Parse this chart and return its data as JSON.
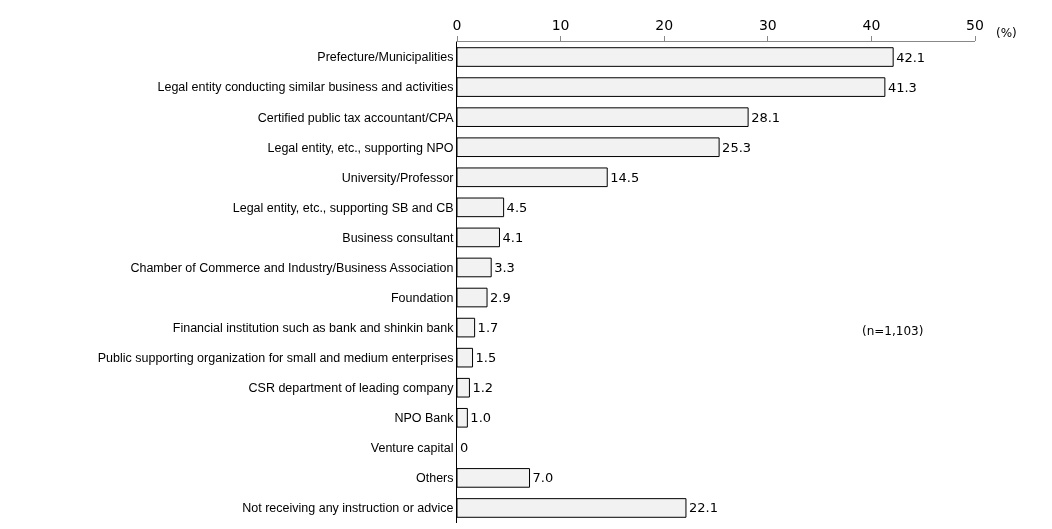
{
  "chart_data": {
    "type": "bar",
    "orientation": "horizontal",
    "categories": [
      "Prefecture/Municipalities",
      "Legal entity conducting similar business and activities",
      "Certified public tax accountant/CPA",
      "Legal entity, etc., supporting NPO",
      "University/Professor",
      "Legal entity, etc., supporting SB and CB",
      "Business consultant",
      "Chamber of Commerce and Industry/Business Association",
      "Foundation",
      "Financial institution such as bank and shinkin bank",
      "Public supporting organization for small and medium enterprises",
      "CSR department of leading company",
      "NPO Bank",
      "Venture capital",
      "Others",
      "Not receiving any instruction or advice"
    ],
    "values": [
      42.1,
      41.3,
      28.1,
      25.3,
      14.5,
      4.5,
      4.1,
      3.3,
      2.9,
      1.7,
      1.5,
      1.2,
      1.0,
      0,
      7.0,
      22.1
    ],
    "value_labels": [
      "42.1",
      "41.3",
      "28.1",
      "25.3",
      "14.5",
      "4.5",
      "4.1",
      "3.3",
      "2.9",
      "1.7",
      "1.5",
      "1.2",
      "1.0",
      "0",
      "7.0",
      "22.1"
    ],
    "color": "#f2f2f2",
    "xlim": [
      0,
      50
    ],
    "xticks": [
      0,
      10,
      20,
      30,
      40,
      50
    ],
    "grid": false,
    "annotations": [
      "(%)",
      "(n=1,103)"
    ]
  }
}
